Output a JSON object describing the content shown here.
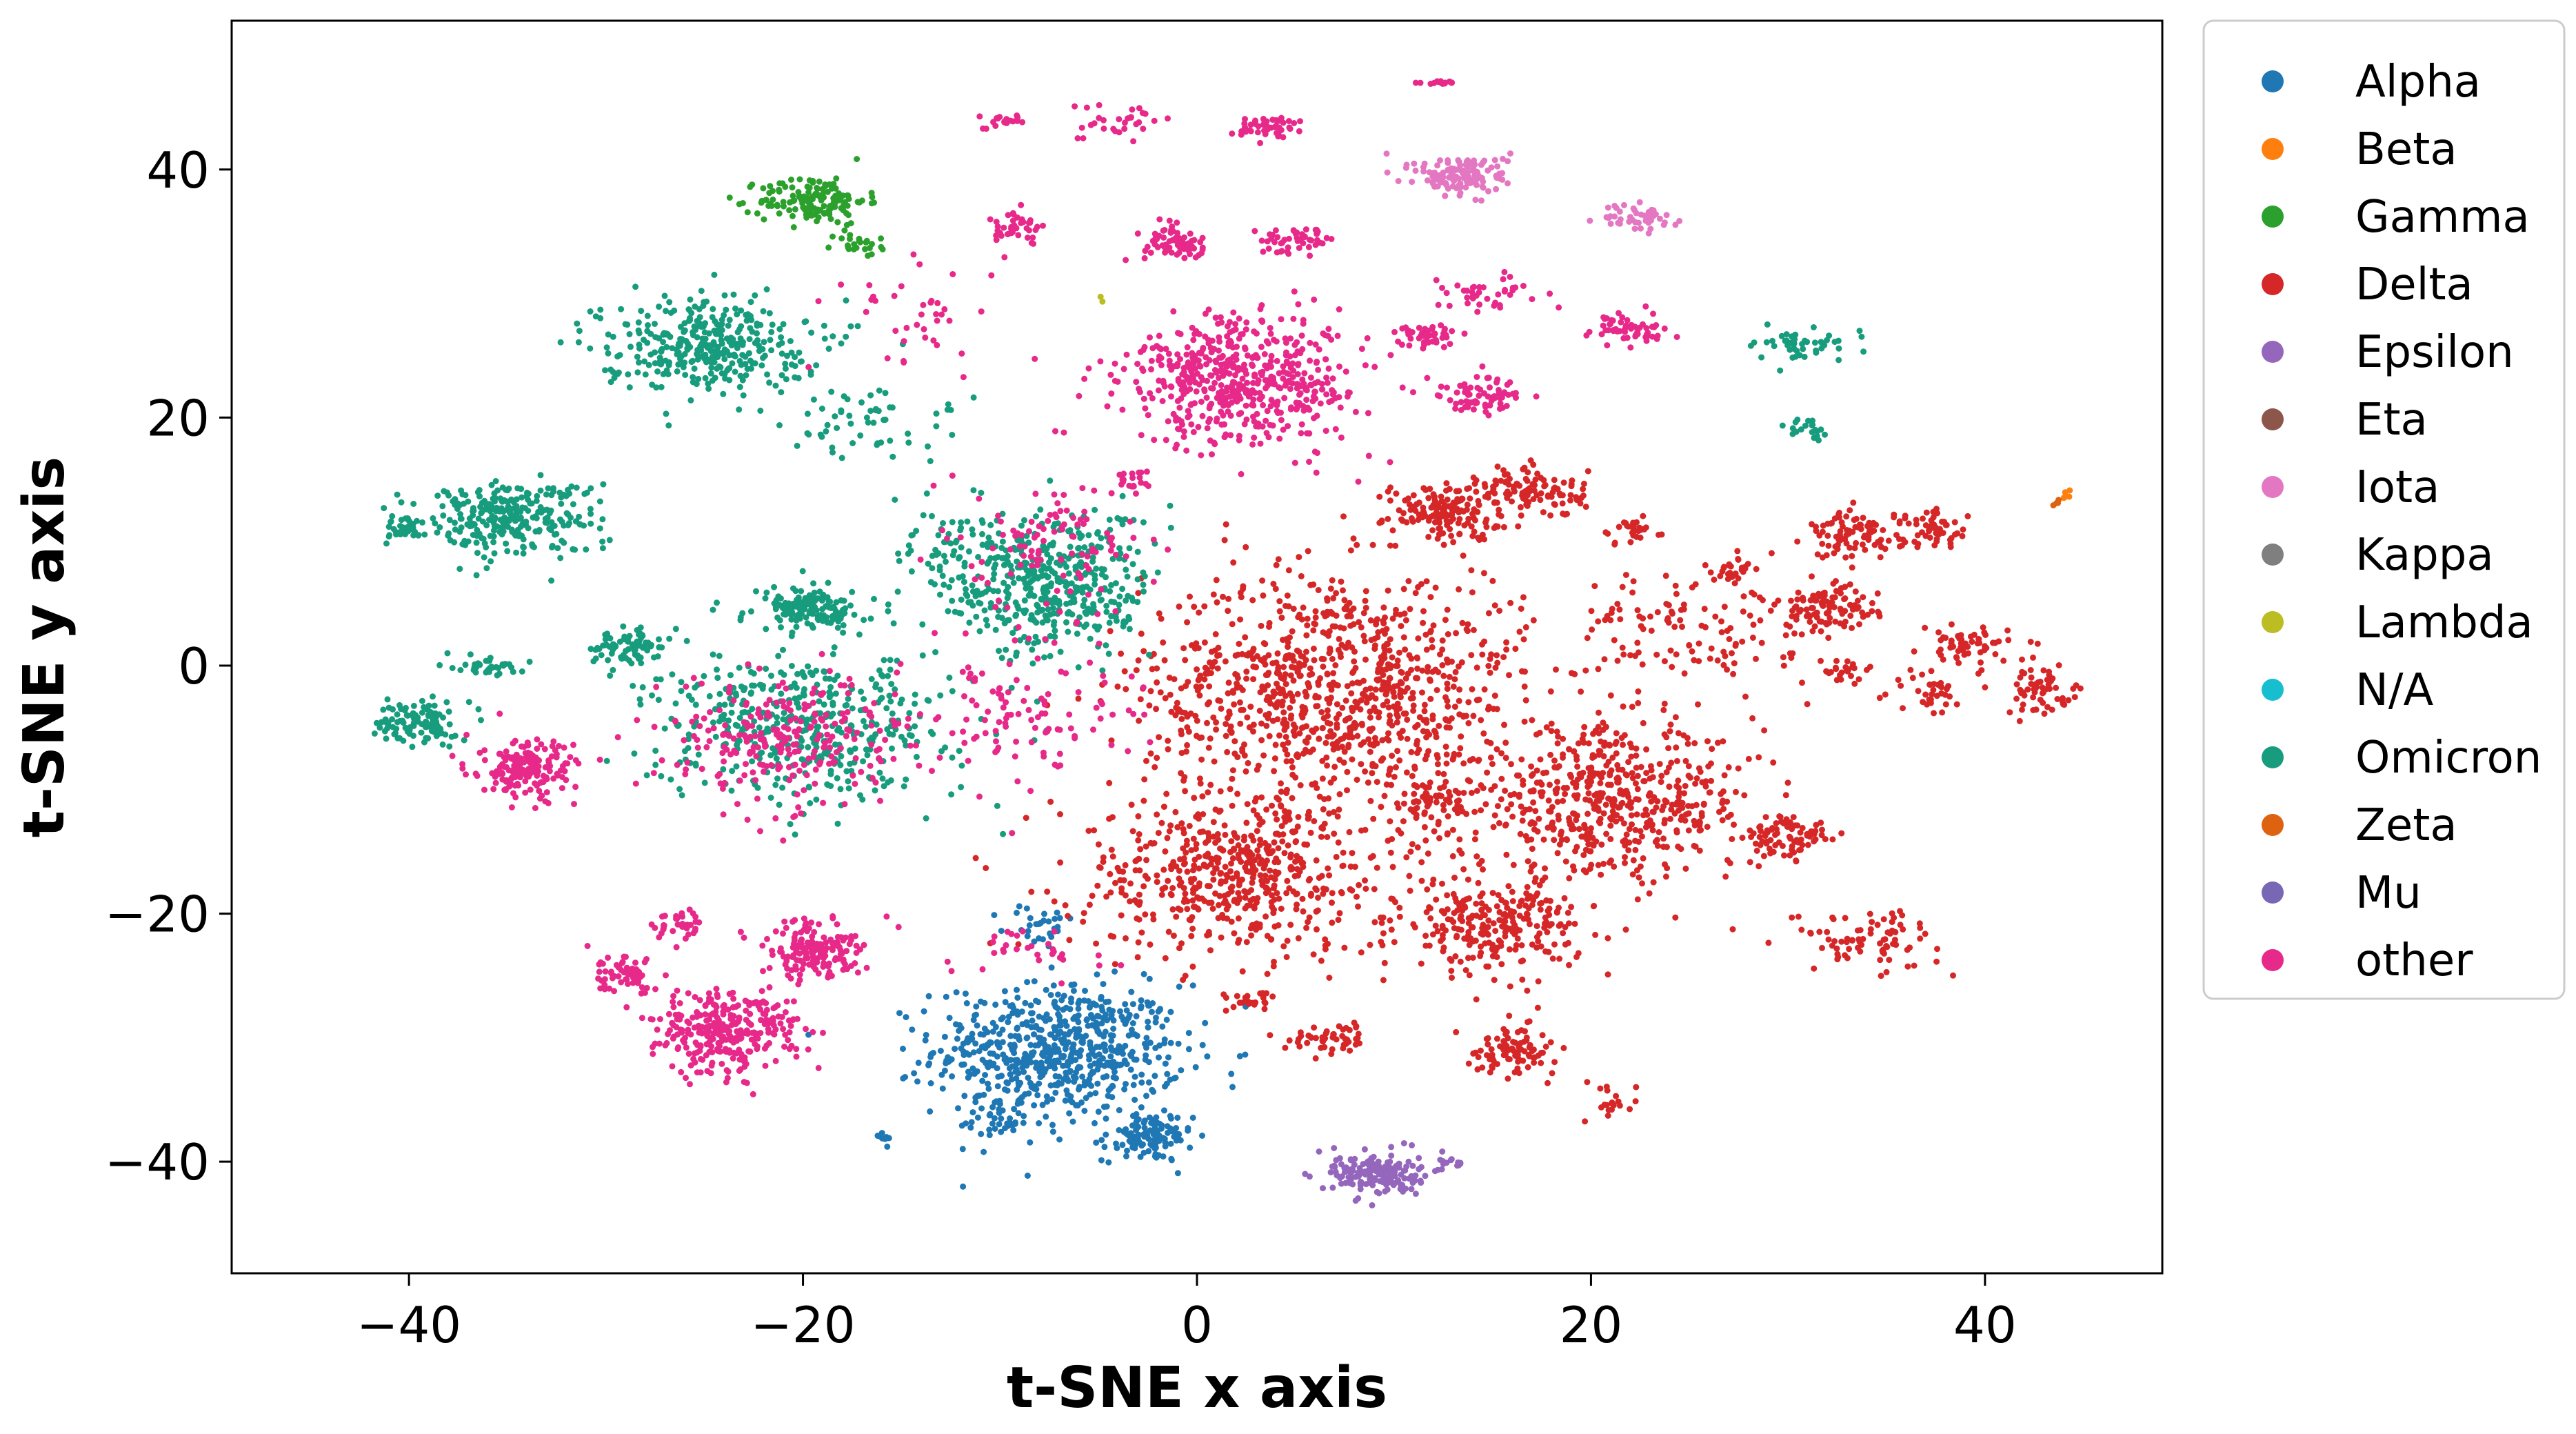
{
  "chart_data": {
    "type": "scatter",
    "title": "",
    "xlabel": "t-SNE x axis",
    "ylabel": "t-SNE y axis",
    "xlim": [
      -49,
      49
    ],
    "ylim": [
      -49,
      52
    ],
    "xticks": [
      -40,
      -20,
      0,
      20,
      40
    ],
    "yticks": [
      -40,
      -20,
      0,
      20,
      40
    ],
    "xtick_labels": [
      "−40",
      "−20",
      "0",
      "20",
      "40"
    ],
    "ytick_labels": [
      "−40",
      "−20",
      "0",
      "20",
      "40"
    ],
    "grid": false,
    "legend_position": "outside-right",
    "series": [
      {
        "name": "Alpha",
        "color": "#1f77b4",
        "clusters": [
          {
            "x": -7,
            "y": -31,
            "sx": 4.2,
            "sy": 3.5,
            "n": 650
          },
          {
            "x": -2.5,
            "y": -38,
            "sx": 1.5,
            "sy": 1.3,
            "n": 120
          },
          {
            "x": -10,
            "y": -37,
            "sx": 1.6,
            "sy": 1.2,
            "n": 40
          },
          {
            "x": -8,
            "y": -21,
            "sx": 1.2,
            "sy": 1.2,
            "n": 30
          },
          {
            "x": -16,
            "y": -38,
            "sx": 0.4,
            "sy": 0.4,
            "n": 8
          }
        ]
      },
      {
        "name": "Beta",
        "color": "#ff7f0e",
        "clusters": [
          {
            "x": 44,
            "y": 14,
            "sx": 0.4,
            "sy": 0.4,
            "n": 5
          }
        ]
      },
      {
        "name": "Gamma",
        "color": "#2ca02c",
        "clusters": [
          {
            "x": -19.5,
            "y": 37.5,
            "sx": 1.8,
            "sy": 1.3,
            "n": 150
          },
          {
            "x": -17,
            "y": 34,
            "sx": 1,
            "sy": 0.7,
            "n": 25
          }
        ]
      },
      {
        "name": "Delta",
        "color": "#d62728",
        "clusters": [
          {
            "x": 7,
            "y": -2,
            "sx": 6.5,
            "sy": 6.5,
            "n": 1000
          },
          {
            "x": 2,
            "y": -17,
            "sx": 5.5,
            "sy": 4.2,
            "n": 550
          },
          {
            "x": 21,
            "y": -11,
            "sx": 5,
            "sy": 4,
            "n": 550
          },
          {
            "x": 15,
            "y": -21,
            "sx": 3,
            "sy": 2.5,
            "n": 260
          },
          {
            "x": 12.5,
            "y": 12.5,
            "sx": 2,
            "sy": 1.5,
            "n": 150
          },
          {
            "x": 17,
            "y": 14,
            "sx": 1.8,
            "sy": 1.4,
            "n": 110
          },
          {
            "x": 33.5,
            "y": 10.5,
            "sx": 1.6,
            "sy": 1.3,
            "n": 100
          },
          {
            "x": 37.5,
            "y": 11,
            "sx": 1.2,
            "sy": 1,
            "n": 50
          },
          {
            "x": 32,
            "y": 4.5,
            "sx": 1.7,
            "sy": 1.3,
            "n": 100
          },
          {
            "x": 39,
            "y": 1.5,
            "sx": 1.5,
            "sy": 1,
            "n": 60
          },
          {
            "x": 43,
            "y": -2,
            "sx": 1.3,
            "sy": 1.3,
            "n": 60
          },
          {
            "x": 37,
            "y": -2,
            "sx": 1.2,
            "sy": 1.2,
            "n": 35
          },
          {
            "x": 33,
            "y": -0.5,
            "sx": 1,
            "sy": 0.8,
            "n": 25
          },
          {
            "x": 30,
            "y": -14,
            "sx": 1.5,
            "sy": 1.3,
            "n": 80
          },
          {
            "x": 34,
            "y": -22,
            "sx": 2.5,
            "sy": 1.6,
            "n": 80
          },
          {
            "x": 16,
            "y": -31,
            "sx": 1.5,
            "sy": 1.2,
            "n": 90
          },
          {
            "x": 7,
            "y": -30,
            "sx": 1.5,
            "sy": 0.8,
            "n": 50
          },
          {
            "x": 12,
            "y": -11,
            "sx": 1.5,
            "sy": 1.2,
            "n": 60
          },
          {
            "x": 25,
            "y": 3,
            "sx": 4,
            "sy": 3,
            "n": 120
          },
          {
            "x": 22,
            "y": 11,
            "sx": 1,
            "sy": 0.8,
            "n": 30
          },
          {
            "x": 27,
            "y": 7.5,
            "sx": 0.8,
            "sy": 0.7,
            "n": 25
          },
          {
            "x": 3,
            "y": -27,
            "sx": 1,
            "sy": 0.6,
            "n": 25
          },
          {
            "x": 21,
            "y": -35,
            "sx": 1,
            "sy": 1,
            "n": 20
          }
        ]
      },
      {
        "name": "Epsilon",
        "color": "#9467bd",
        "clusters": [
          {
            "x": 9,
            "y": -41,
            "sx": 1.5,
            "sy": 1.2,
            "n": 160
          },
          {
            "x": 13,
            "y": -40,
            "sx": 0.5,
            "sy": 0.5,
            "n": 15
          }
        ]
      },
      {
        "name": "Eta",
        "color": "#8c564b",
        "clusters": []
      },
      {
        "name": "Iota",
        "color": "#e377c2",
        "clusters": [
          {
            "x": 13.5,
            "y": 39.5,
            "sx": 1.6,
            "sy": 1.1,
            "n": 140
          },
          {
            "x": 22.5,
            "y": 36,
            "sx": 1.2,
            "sy": 0.8,
            "n": 50
          }
        ]
      },
      {
        "name": "Kappa",
        "color": "#7f7f7f",
        "clusters": []
      },
      {
        "name": "Lambda",
        "color": "#bcbd22",
        "clusters": [
          {
            "x": -5,
            "y": 29.5,
            "sx": 0.3,
            "sy": 0.3,
            "n": 2
          }
        ]
      },
      {
        "name": "N/A",
        "color": "#17becf",
        "clusters": []
      },
      {
        "name": "Omicron",
        "color": "#179c7d",
        "clusters": [
          {
            "x": -25,
            "y": 26,
            "sx": 3.5,
            "sy": 2.5,
            "n": 350
          },
          {
            "x": -35,
            "y": 12,
            "sx": 3,
            "sy": 2,
            "n": 280
          },
          {
            "x": -7.5,
            "y": 6.5,
            "sx": 3.5,
            "sy": 4,
            "n": 450
          },
          {
            "x": -19.5,
            "y": 4.5,
            "sx": 1.6,
            "sy": 1.1,
            "n": 150
          },
          {
            "x": -20,
            "y": -5,
            "sx": 5,
            "sy": 4,
            "n": 450
          },
          {
            "x": -29,
            "y": 1.5,
            "sx": 1.2,
            "sy": 1,
            "n": 80
          },
          {
            "x": -40,
            "y": 11,
            "sx": 0.8,
            "sy": 0.6,
            "n": 40
          },
          {
            "x": -39.5,
            "y": -4.5,
            "sx": 1.3,
            "sy": 1.2,
            "n": 110
          },
          {
            "x": -36,
            "y": 0,
            "sx": 1,
            "sy": 0.7,
            "n": 40
          },
          {
            "x": 31,
            "y": 26,
            "sx": 2,
            "sy": 0.9,
            "n": 50
          },
          {
            "x": 31,
            "y": 19,
            "sx": 0.6,
            "sy": 0.5,
            "n": 20
          },
          {
            "x": -17,
            "y": 20,
            "sx": 3,
            "sy": 2.5,
            "n": 60
          },
          {
            "x": -13,
            "y": 10,
            "sx": 2,
            "sy": 2,
            "n": 40
          }
        ]
      },
      {
        "name": "Zeta",
        "color": "#dd6310",
        "clusters": [
          {
            "x": 43.5,
            "y": 13,
            "sx": 0.4,
            "sy": 0.4,
            "n": 4
          }
        ]
      },
      {
        "name": "Mu",
        "color": "#7767b4",
        "clusters": []
      },
      {
        "name": "other",
        "color": "#e7298a",
        "clusters": [
          {
            "x": 2.5,
            "y": 23,
            "sx": 4,
            "sy": 3.5,
            "n": 550
          },
          {
            "x": -24,
            "y": -29.5,
            "sx": 2.5,
            "sy": 2.3,
            "n": 300
          },
          {
            "x": -19.5,
            "y": -23,
            "sx": 1.8,
            "sy": 1.5,
            "n": 160
          },
          {
            "x": -34,
            "y": -8.5,
            "sx": 1.6,
            "sy": 1.6,
            "n": 170
          },
          {
            "x": -29,
            "y": -25,
            "sx": 1.2,
            "sy": 1,
            "n": 60
          },
          {
            "x": -26,
            "y": -21,
            "sx": 1,
            "sy": 0.8,
            "n": 35
          },
          {
            "x": -1,
            "y": 34,
            "sx": 1.2,
            "sy": 0.9,
            "n": 70
          },
          {
            "x": 5,
            "y": 34,
            "sx": 1.2,
            "sy": 0.8,
            "n": 50
          },
          {
            "x": -9,
            "y": 35.5,
            "sx": 0.8,
            "sy": 0.8,
            "n": 40
          },
          {
            "x": 3.5,
            "y": 43.5,
            "sx": 1.2,
            "sy": 0.6,
            "n": 50
          },
          {
            "x": -10,
            "y": 44,
            "sx": 0.8,
            "sy": 0.5,
            "n": 20
          },
          {
            "x": -4,
            "y": 44,
            "sx": 2,
            "sy": 1,
            "n": 30
          },
          {
            "x": 14.5,
            "y": 22,
            "sx": 1.4,
            "sy": 0.9,
            "n": 70
          },
          {
            "x": 11.5,
            "y": 26.5,
            "sx": 1,
            "sy": 0.8,
            "n": 45
          },
          {
            "x": 22,
            "y": 27,
            "sx": 1.3,
            "sy": 0.8,
            "n": 55
          },
          {
            "x": 15,
            "y": 30,
            "sx": 2,
            "sy": 1,
            "n": 40
          },
          {
            "x": -8.5,
            "y": -3,
            "sx": 4,
            "sy": 5,
            "n": 120
          },
          {
            "x": -21,
            "y": -6,
            "sx": 4,
            "sy": 3.5,
            "n": 250
          },
          {
            "x": -3,
            "y": 15,
            "sx": 0.8,
            "sy": 0.6,
            "n": 20
          },
          {
            "x": -7,
            "y": 10,
            "sx": 3,
            "sy": 3,
            "n": 100
          },
          {
            "x": -8.5,
            "y": -23,
            "sx": 2.5,
            "sy": 1.5,
            "n": 30
          },
          {
            "x": 12.5,
            "y": 47,
            "sx": 1,
            "sy": 0.1,
            "n": 15
          },
          {
            "x": -14,
            "y": 28,
            "sx": 3,
            "sy": 3,
            "n": 40
          }
        ]
      }
    ]
  }
}
